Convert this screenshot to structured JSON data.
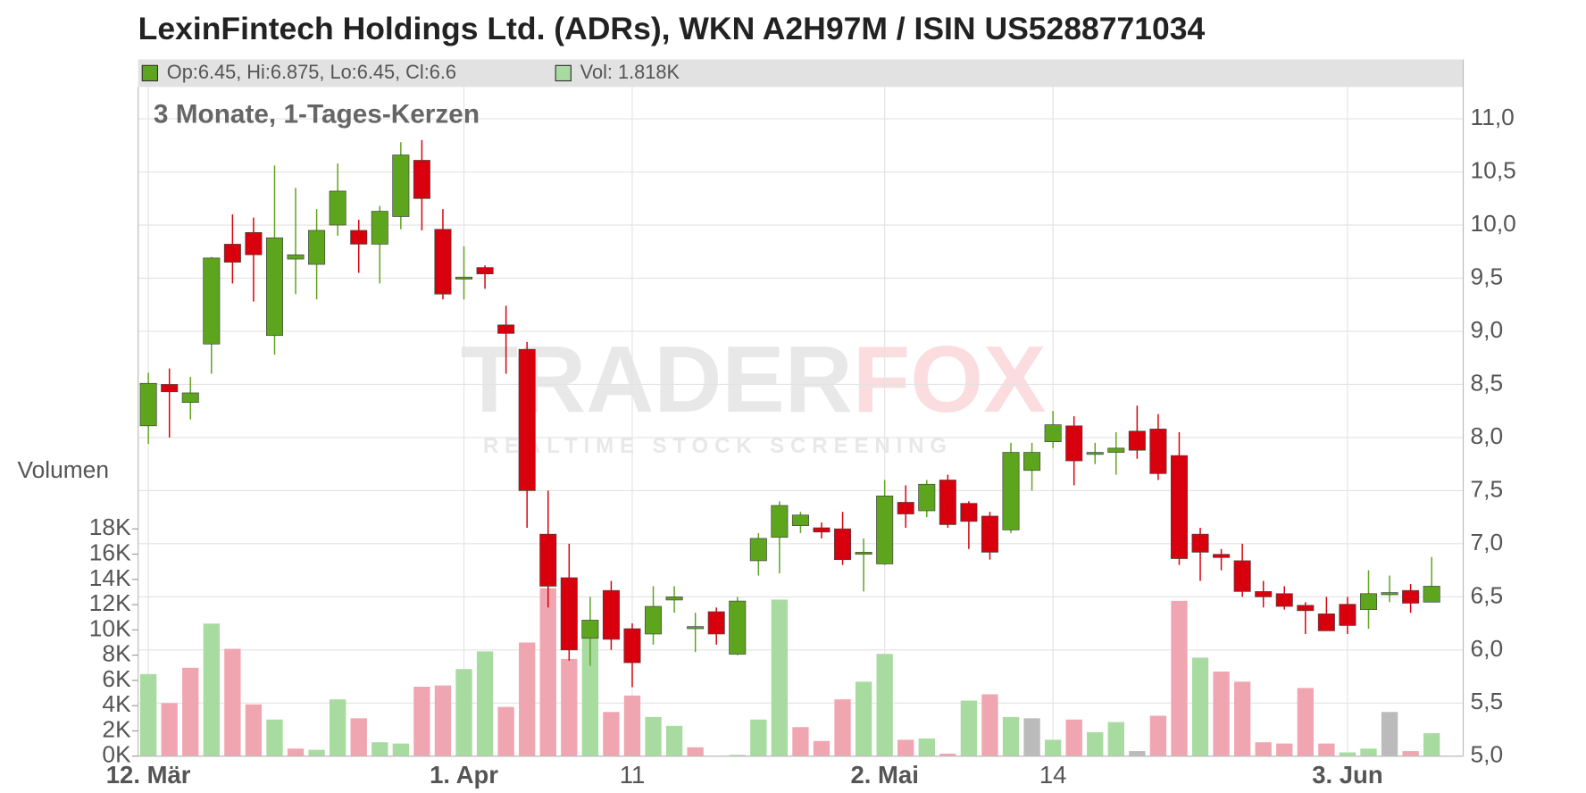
{
  "chart_data": {
    "type": "candlestick",
    "title": "LexinFintech Holdings Ltd. (ADRs), WKN A2H97M / ISIN US5288771034",
    "subtitle": "3 Monate, 1-Tages-Kerzen",
    "legend": {
      "ohlc": "Op:6.45, Hi:6.875, Lo:6.45, Cl:6.6",
      "volume": "Vol: 1.818K"
    },
    "volume_axis_label": "Volumen",
    "watermark": {
      "brand": [
        "TRADER",
        "FOX"
      ],
      "tagline": "REALTIME STOCK SCREENING"
    },
    "categories": [
      "12. Mär",
      null,
      null,
      null,
      null,
      null,
      null,
      null,
      null,
      null,
      null,
      null,
      null,
      null,
      null,
      "1. Apr",
      null,
      null,
      null,
      null,
      null,
      null,
      null,
      "11",
      null,
      null,
      null,
      null,
      null,
      null,
      null,
      null,
      null,
      null,
      null,
      "2. Mai",
      null,
      null,
      null,
      null,
      null,
      null,
      null,
      "14",
      null,
      null,
      null,
      null,
      null,
      null,
      null,
      null,
      null,
      null,
      null,
      null,
      null,
      "3. Jun",
      null,
      null,
      null,
      null
    ],
    "open": [
      8.11,
      8.5,
      8.33,
      8.88,
      9.82,
      9.93,
      8.96,
      9.68,
      9.63,
      10.0,
      9.95,
      9.82,
      10.08,
      10.61,
      9.96,
      9.51,
      9.6,
      9.06,
      8.83,
      7.09,
      6.68,
      6.11,
      6.56,
      6.2,
      6.15,
      6.47,
      6.2,
      6.36,
      5.96,
      6.84,
      7.06,
      7.17,
      7.15,
      7.14,
      6.92,
      6.81,
      7.39,
      7.31,
      7.6,
      7.38,
      7.26,
      7.13,
      7.69,
      7.96,
      8.11,
      7.86,
      7.86,
      8.06,
      8.08,
      7.83,
      7.09,
      6.9,
      6.84,
      6.55,
      6.53,
      6.42,
      6.34,
      6.43,
      6.38,
      6.52,
      6.56,
      6.45
    ],
    "high": [
      8.61,
      8.65,
      8.57,
      9.7,
      10.1,
      10.07,
      10.56,
      10.35,
      10.15,
      10.58,
      10.05,
      10.18,
      10.78,
      10.8,
      10.15,
      9.8,
      9.62,
      9.24,
      8.9,
      7.5,
      7.0,
      6.5,
      6.65,
      6.25,
      6.6,
      6.6,
      6.35,
      6.4,
      6.5,
      7.1,
      7.4,
      7.3,
      7.2,
      7.3,
      7.05,
      7.6,
      7.55,
      7.6,
      7.65,
      7.4,
      7.3,
      7.95,
      7.95,
      8.25,
      8.2,
      7.95,
      8.05,
      8.3,
      8.22,
      8.05,
      7.15,
      6.95,
      7.0,
      6.65,
      6.6,
      6.45,
      6.5,
      6.5,
      6.75,
      6.7,
      6.62,
      6.875
    ],
    "low": [
      7.94,
      8.0,
      8.17,
      8.6,
      9.45,
      9.28,
      8.78,
      9.35,
      9.3,
      9.9,
      9.55,
      9.45,
      9.96,
      9.95,
      9.3,
      9.3,
      9.4,
      8.6,
      7.15,
      6.4,
      5.9,
      5.85,
      6.0,
      5.65,
      6.05,
      6.35,
      5.98,
      6.05,
      5.95,
      6.7,
      6.72,
      7.1,
      7.05,
      6.8,
      6.55,
      6.8,
      7.15,
      7.25,
      7.15,
      6.95,
      6.85,
      7.1,
      7.5,
      7.9,
      7.55,
      7.75,
      7.65,
      7.8,
      7.6,
      6.8,
      6.65,
      6.75,
      6.5,
      6.4,
      6.38,
      6.15,
      6.18,
      6.15,
      6.2,
      6.45,
      6.35,
      6.45
    ],
    "close": [
      8.51,
      8.43,
      8.42,
      9.69,
      9.65,
      9.72,
      9.88,
      9.72,
      9.95,
      10.32,
      9.82,
      10.13,
      10.66,
      10.25,
      9.35,
      9.51,
      9.54,
      8.98,
      7.5,
      6.6,
      6.0,
      6.28,
      6.1,
      5.88,
      6.41,
      6.5,
      6.22,
      6.15,
      6.46,
      7.05,
      7.36,
      7.27,
      7.11,
      6.85,
      6.92,
      7.45,
      7.28,
      7.56,
      7.18,
      7.21,
      6.92,
      7.86,
      7.86,
      8.12,
      7.78,
      7.86,
      7.9,
      7.88,
      7.66,
      6.86,
      6.92,
      6.87,
      6.55,
      6.5,
      6.41,
      6.37,
      6.18,
      6.23,
      6.53,
      6.54,
      6.44,
      6.6
    ],
    "volume": [
      6500,
      4200,
      7000,
      10500,
      8500,
      4100,
      2900,
      600,
      500,
      4500,
      3000,
      1100,
      1000,
      5500,
      5600,
      6900,
      8300,
      3900,
      9000,
      13300,
      7700,
      10800,
      3500,
      4800,
      3100,
      2400,
      700,
      0,
      100,
      2900,
      12400,
      2300,
      1200,
      4500,
      5900,
      8100,
      1300,
      1400,
      200,
      4400,
      4900,
      3100,
      3000,
      1300,
      2900,
      1900,
      2700,
      400,
      3200,
      12300,
      7800,
      6700,
      5900,
      1100,
      1000,
      5400,
      1000,
      300,
      600,
      3500,
      400,
      1818
    ],
    "volume_colors": [
      "#a8dba0",
      "#f0a6b0",
      "#f0a6b0",
      "#a8dba0",
      "#f0a6b0",
      "#f0a6b0",
      "#a8dba0",
      "#f0a6b0",
      "#a8dba0",
      "#a8dba0",
      "#f0a6b0",
      "#a8dba0",
      "#a8dba0",
      "#f0a6b0",
      "#f0a6b0",
      "#a8dba0",
      "#a8dba0",
      "#f0a6b0",
      "#f0a6b0",
      "#f0a6b0",
      "#f0a6b0",
      "#a8dba0",
      "#f0a6b0",
      "#f0a6b0",
      "#a8dba0",
      "#a8dba0",
      "#f0a6b0",
      "#a8dba0",
      "#a8dba0",
      "#a8dba0",
      "#a8dba0",
      "#f0a6b0",
      "#f0a6b0",
      "#f0a6b0",
      "#a8dba0",
      "#a8dba0",
      "#f0a6b0",
      "#a8dba0",
      "#f0a6b0",
      "#a8dba0",
      "#f0a6b0",
      "#a8dba0",
      "#bbbbbb",
      "#a8dba0",
      "#f0a6b0",
      "#a8dba0",
      "#a8dba0",
      "#bbbbbb",
      "#f0a6b0",
      "#f0a6b0",
      "#a8dba0",
      "#f0a6b0",
      "#f0a6b0",
      "#f0a6b0",
      "#f0a6b0",
      "#f0a6b0",
      "#f0a6b0",
      "#a8dba0",
      "#a8dba0",
      "#bbbbbb",
      "#f0a6b0",
      "#a8dba0"
    ],
    "up_color": "#5ea51e",
    "down_color": "#d9000d",
    "ylim": [
      5,
      11.3
    ],
    "yticks": [
      {
        "value": 5,
        "label": "5,0"
      },
      {
        "value": 5.5,
        "label": "5,5"
      },
      {
        "value": 6,
        "label": "6,0"
      },
      {
        "value": 6.5,
        "label": "6,5"
      },
      {
        "value": 7,
        "label": "7,0"
      },
      {
        "value": 7.5,
        "label": "7,5"
      },
      {
        "value": 8,
        "label": "8,0"
      },
      {
        "value": 8.5,
        "label": "8,5"
      },
      {
        "value": 9,
        "label": "9,0"
      },
      {
        "value": 9.5,
        "label": "9,5"
      },
      {
        "value": 10,
        "label": "10,0"
      },
      {
        "value": 10.5,
        "label": "10,5"
      },
      {
        "value": 11,
        "label": "11,0"
      }
    ],
    "y2lim": [
      0,
      53000
    ],
    "y2ticks": [
      {
        "value": 0,
        "label": "0K"
      },
      {
        "value": 2000,
        "label": "2K"
      },
      {
        "value": 4000,
        "label": "4K"
      },
      {
        "value": 6000,
        "label": "6K"
      },
      {
        "value": 8000,
        "label": "8K"
      },
      {
        "value": 10000,
        "label": "10K"
      },
      {
        "value": 12000,
        "label": "12K"
      },
      {
        "value": 14000,
        "label": "14K"
      },
      {
        "value": 16000,
        "label": "16K"
      },
      {
        "value": 18000,
        "label": "18K"
      }
    ],
    "grid": true
  }
}
